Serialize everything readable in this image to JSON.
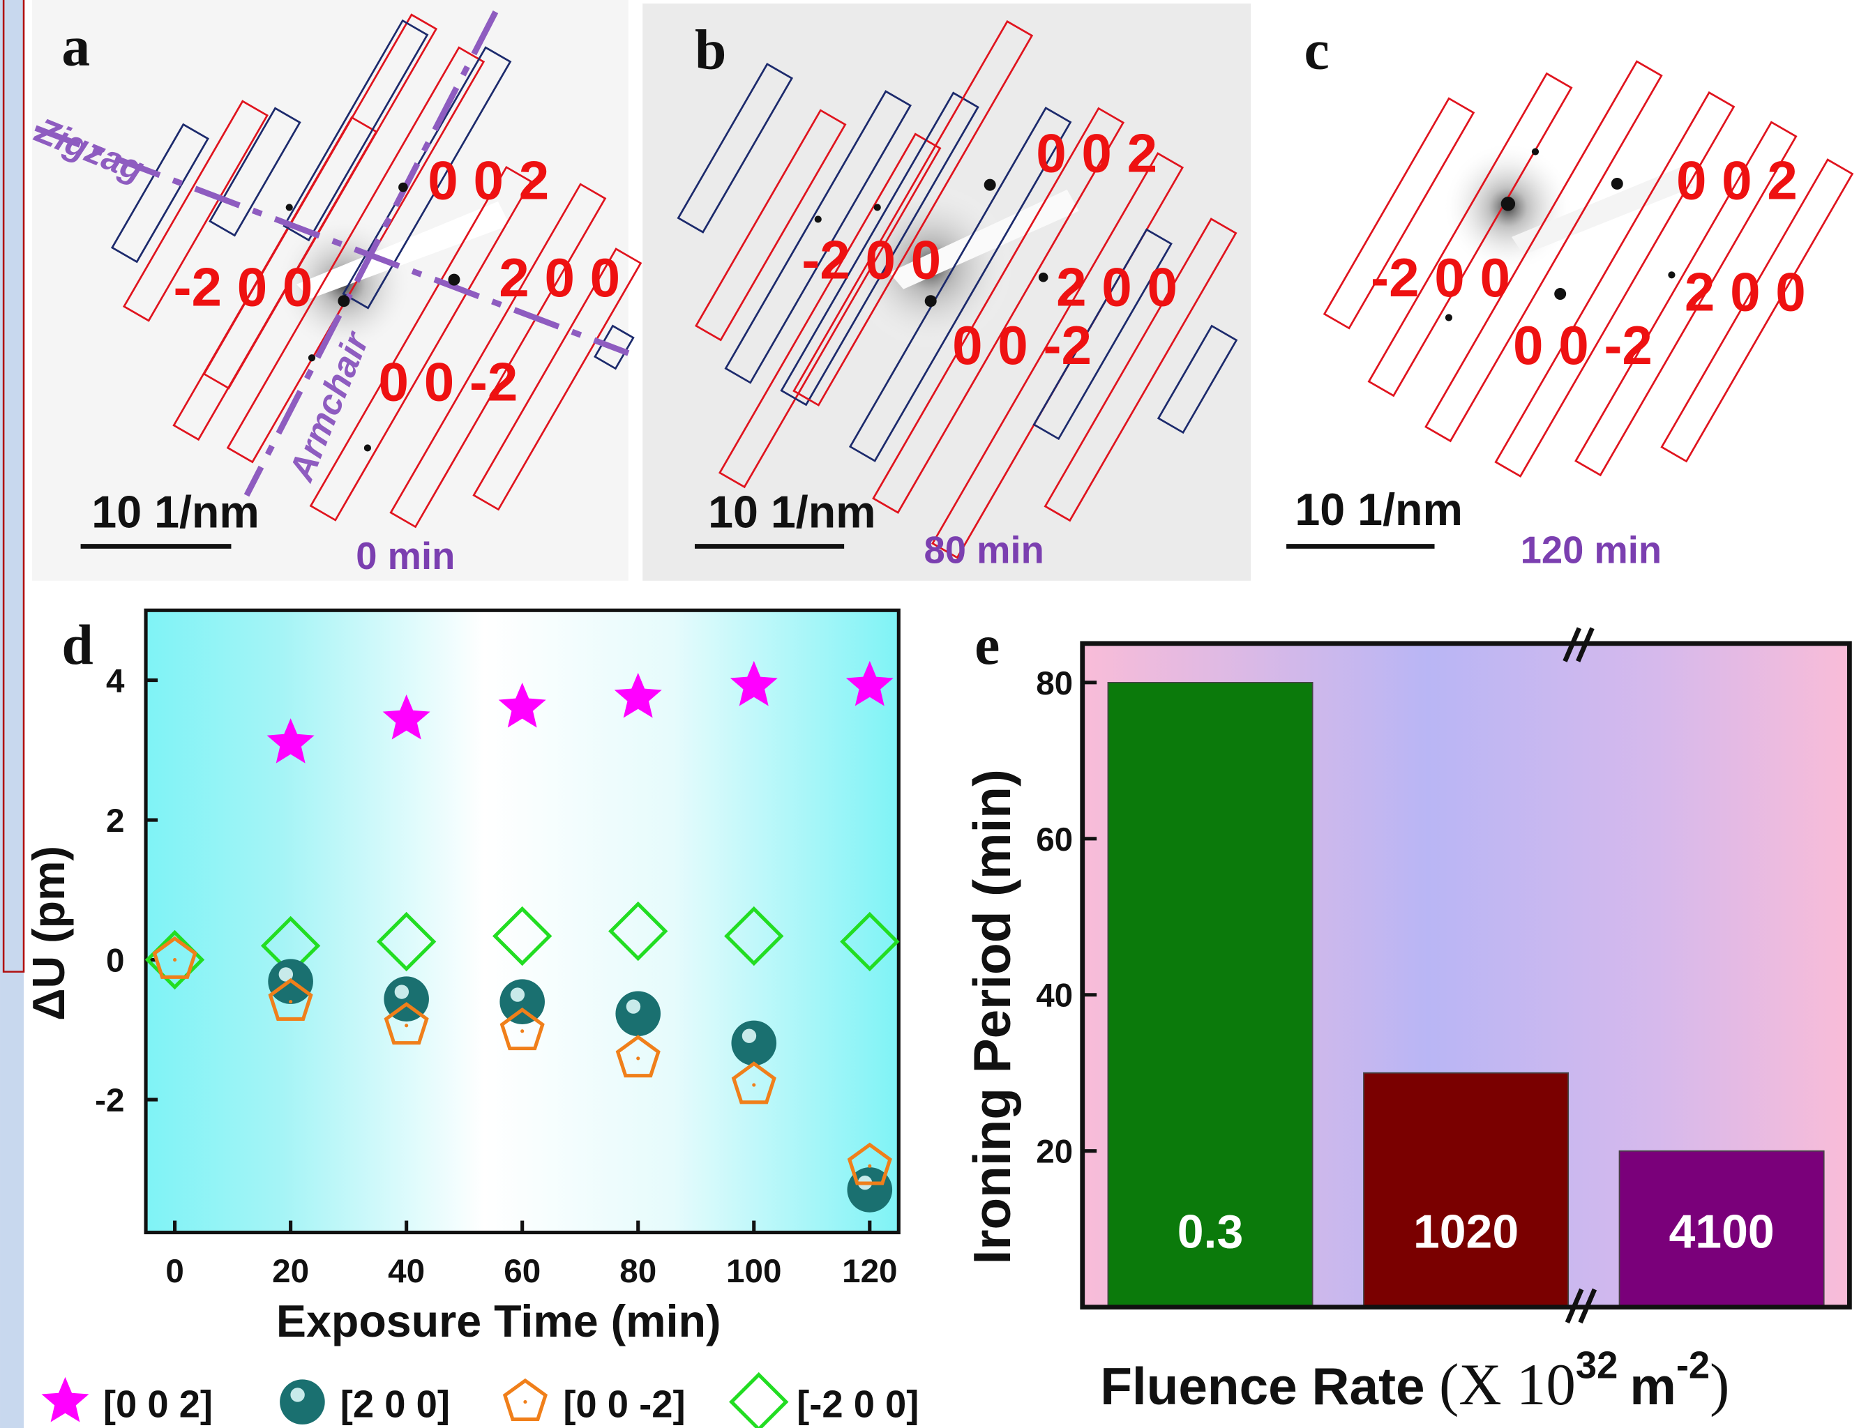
{
  "panels": [
    {
      "letter": "a",
      "spots": [
        "0 0 2",
        "-2 0 0",
        "2 0 0",
        "0 0 -2"
      ],
      "directions": [
        "Zigzag",
        "Armchair"
      ],
      "scale_bar": "10 1/nm",
      "time": "0 min"
    },
    {
      "letter": "b",
      "spots": [
        "0 0 2",
        "-2 0 0",
        "2 0 0",
        "0 0 -2"
      ],
      "scale_bar": "10 1/nm",
      "time": "80 min"
    },
    {
      "letter": "c",
      "spots": [
        "0 0 2",
        "-2 0 0",
        "2 0 0",
        "0 0 -2"
      ],
      "scale_bar": "10 1/nm",
      "time": "120 min"
    }
  ],
  "chart_data": [
    {
      "type": "scatter",
      "letter": "d",
      "xlabel": "Exposure Time (min)",
      "ylabel": "ΔU (pm)",
      "x": [
        0,
        20,
        40,
        60,
        80,
        100,
        120
      ],
      "xlim": [
        -5,
        125
      ],
      "xticks": [
        0,
        20,
        40,
        60,
        80,
        100,
        120
      ],
      "ylim": [
        -3.9,
        5
      ],
      "yticks": [
        -2,
        0,
        2,
        4
      ],
      "series": [
        {
          "name": "[0 0 2]",
          "marker": "star",
          "color": "#ff00ff",
          "values": [
            null,
            3.1,
            3.44,
            3.61,
            3.75,
            3.92,
            3.92
          ]
        },
        {
          "name": "[2 0 0]",
          "marker": "ball",
          "color": "#1a7070",
          "values": [
            null,
            -0.31,
            -0.56,
            -0.6,
            -0.77,
            -1.19,
            -3.29
          ]
        },
        {
          "name": "[0 0 -2]",
          "marker": "pentagon",
          "color": "#f07f1a",
          "values": [
            0,
            -0.6,
            -0.94,
            -1.02,
            -1.41,
            -1.79,
            -2.95
          ]
        },
        {
          "name": "[-2 0 0]",
          "marker": "diamond",
          "color": "#22dd22",
          "values": [
            0,
            0.2,
            0.26,
            0.34,
            0.41,
            0.34,
            0.26
          ]
        }
      ]
    },
    {
      "type": "bar",
      "letter": "e",
      "ylabel": "Ironing Period (min)",
      "xlabel": {
        "text": "Fluence Rate",
        "open": "(X 10",
        "exponent": "32",
        "unit": "m",
        "unit_exponent": "-2",
        "close": ")"
      },
      "categories": [
        "0.3",
        "1020",
        "4100"
      ],
      "values": [
        80,
        30,
        20
      ],
      "colors": [
        "#0b7a0b",
        "#7a0000",
        "#7a007a"
      ],
      "ylim": [
        0,
        85
      ],
      "yticks": [
        20,
        40,
        60,
        80
      ]
    }
  ]
}
